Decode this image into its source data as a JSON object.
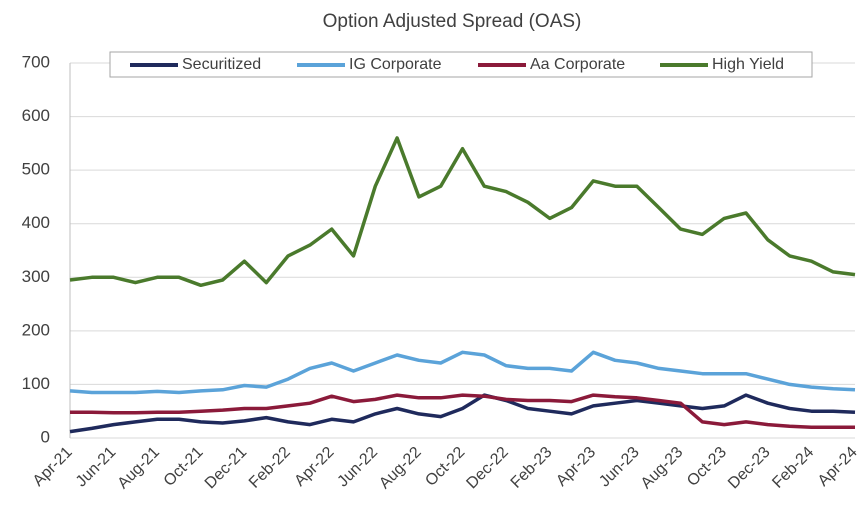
{
  "chart_data": {
    "type": "line",
    "title": "Option Adjusted Spread (OAS)",
    "categories": [
      "Apr-21",
      null,
      "Jun-21",
      null,
      "Aug-21",
      null,
      "Oct-21",
      null,
      "Dec-21",
      null,
      "Feb-22",
      null,
      "Apr-22",
      null,
      "Jun-22",
      null,
      "Aug-22",
      null,
      "Oct-22",
      null,
      "Dec-22",
      null,
      "Feb-23",
      null,
      "Apr-23",
      null,
      "Jun-23",
      null,
      "Aug-23",
      null,
      "Oct-23",
      null,
      "Dec-23",
      null,
      "Feb-24",
      null,
      "Apr-24"
    ],
    "series": [
      {
        "name": "Securitized",
        "color": "#1f2a5c",
        "values": [
          12,
          18,
          25,
          30,
          35,
          35,
          30,
          28,
          32,
          38,
          30,
          25,
          35,
          30,
          45,
          55,
          45,
          40,
          55,
          80,
          70,
          55,
          50,
          45,
          60,
          65,
          70,
          65,
          60,
          55,
          60,
          80,
          65,
          55,
          50,
          50,
          48
        ]
      },
      {
        "name": "IG Corporate",
        "color": "#5ba3d9",
        "values": [
          88,
          85,
          85,
          85,
          87,
          85,
          88,
          90,
          98,
          95,
          110,
          130,
          140,
          125,
          140,
          155,
          145,
          140,
          160,
          155,
          135,
          130,
          130,
          125,
          160,
          145,
          140,
          130,
          125,
          120,
          120,
          120,
          110,
          100,
          95,
          92,
          90
        ]
      },
      {
        "name": "Aa Corporate",
        "color": "#8b1a3a",
        "values": [
          48,
          48,
          47,
          47,
          48,
          48,
          50,
          52,
          55,
          55,
          60,
          65,
          78,
          68,
          72,
          80,
          75,
          75,
          80,
          78,
          72,
          70,
          70,
          68,
          80,
          77,
          75,
          70,
          65,
          30,
          25,
          30,
          25,
          22,
          20,
          20,
          20
        ]
      },
      {
        "name": "High Yield",
        "color": "#4a7a2c",
        "values": [
          295,
          300,
          300,
          290,
          300,
          300,
          285,
          295,
          330,
          290,
          340,
          360,
          390,
          340,
          470,
          560,
          450,
          470,
          540,
          470,
          460,
          440,
          410,
          430,
          480,
          470,
          470,
          430,
          390,
          380,
          410,
          420,
          370,
          340,
          330,
          310,
          305
        ]
      }
    ],
    "ylim": [
      0,
      700
    ],
    "yticks": [
      0,
      100,
      200,
      300,
      400,
      500,
      600,
      700
    ],
    "grid": true,
    "legend": "top"
  }
}
